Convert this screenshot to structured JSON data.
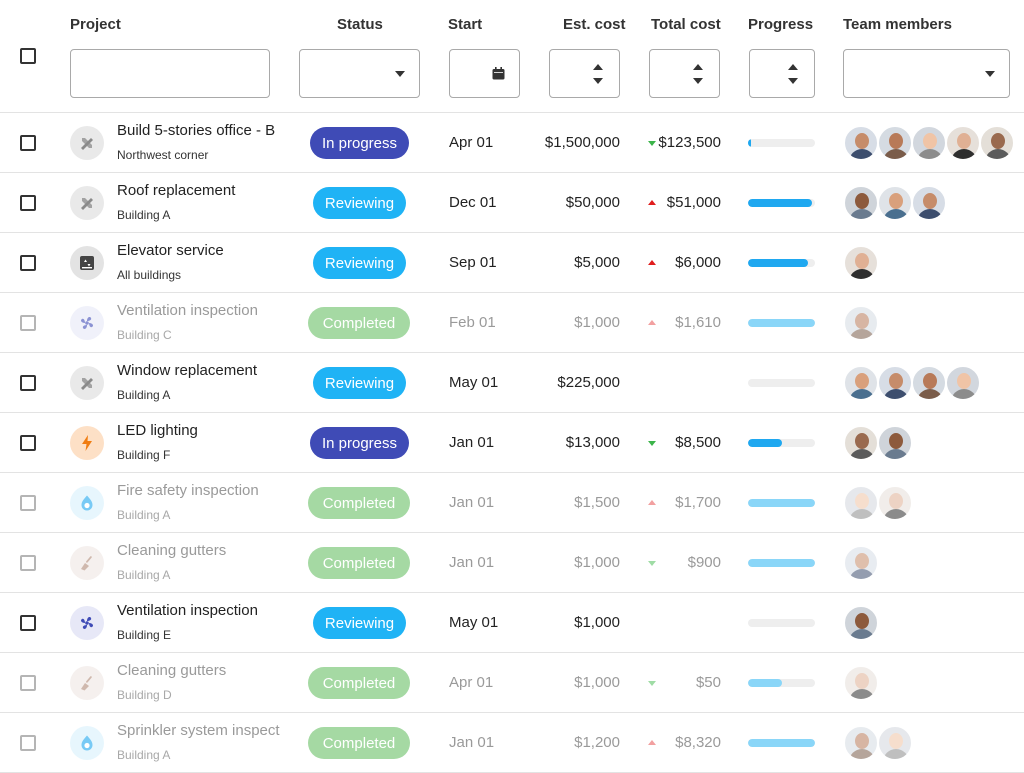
{
  "header": {
    "project": "Project",
    "status": "Status",
    "start": "Start",
    "est_cost": "Est. cost",
    "total_cost": "Total cost",
    "progress": "Progress",
    "team_members": "Team members"
  },
  "colors": {
    "in_progress": "#3f4bb6",
    "reviewing": "#1fb3f5",
    "completed": "#a5d9a3",
    "progress_fill": "#1fa8f0",
    "trend_up": "#e01e1e",
    "trend_down": "#3cb44a"
  },
  "rows": [
    {
      "name": "Build 5-stories office - B",
      "sub": "Northwest corner",
      "icon": "tools-icon",
      "status": "In progress",
      "start": "Apr 01",
      "est": "$1,500,000",
      "trend": "down",
      "total": "$123,500",
      "progress": 0.05,
      "members": 5,
      "muted": false
    },
    {
      "name": "Roof replacement",
      "sub": "Building A",
      "icon": "tools-icon",
      "status": "Reviewing",
      "start": "Dec 01",
      "est": "$50,000",
      "trend": "up",
      "total": "$51,000",
      "progress": 0.95,
      "members": 3,
      "muted": false
    },
    {
      "name": "Elevator service",
      "sub": "All buildings",
      "icon": "elevator-icon",
      "status": "Reviewing",
      "start": "Sep 01",
      "est": "$5,000",
      "trend": "up",
      "total": "$6,000",
      "progress": 0.9,
      "members": 1,
      "muted": false
    },
    {
      "name": "Ventilation inspection",
      "sub": "Building C",
      "icon": "fan-icon",
      "status": "Completed",
      "start": "Feb 01",
      "est": "$1,000",
      "trend": "up",
      "total": "$1,610",
      "progress": 1.0,
      "members": 1,
      "muted": true
    },
    {
      "name": "Window replacement",
      "sub": "Building A",
      "icon": "tools-icon",
      "status": "Reviewing",
      "start": "May 01",
      "est": "$225,000",
      "trend": "",
      "total": "",
      "progress": 0,
      "members": 4,
      "muted": false
    },
    {
      "name": "LED lighting",
      "sub": "Building F",
      "icon": "bolt-icon",
      "status": "In progress",
      "start": "Jan 01",
      "est": "$13,000",
      "trend": "down",
      "total": "$8,500",
      "progress": 0.5,
      "members": 2,
      "muted": false
    },
    {
      "name": "Fire safety inspection",
      "sub": "Building A",
      "icon": "flame-icon",
      "status": "Completed",
      "start": "Jan 01",
      "est": "$1,500",
      "trend": "up",
      "total": "$1,700",
      "progress": 1.0,
      "members": 2,
      "muted": true
    },
    {
      "name": "Cleaning gutters",
      "sub": "Building A",
      "icon": "broom-icon",
      "status": "Completed",
      "start": "Jan 01",
      "est": "$1,000",
      "trend": "down",
      "total": "$900",
      "progress": 1.0,
      "members": 1,
      "muted": true
    },
    {
      "name": "Ventilation inspection",
      "sub": "Building E",
      "icon": "fan-icon",
      "status": "Reviewing",
      "start": "May 01",
      "est": "$1,000",
      "trend": "",
      "total": "",
      "progress": 0,
      "members": 1,
      "muted": false
    },
    {
      "name": "Cleaning gutters",
      "sub": "Building D",
      "icon": "broom-icon",
      "status": "Completed",
      "start": "Apr 01",
      "est": "$1,000",
      "trend": "down",
      "total": "$50",
      "progress": 0.5,
      "members": 1,
      "muted": true
    },
    {
      "name": "Sprinkler system inspect",
      "sub": "Building A",
      "icon": "flame-icon",
      "status": "Completed",
      "start": "Jan 01",
      "est": "$1,200",
      "trend": "up",
      "total": "$8,320",
      "progress": 1.0,
      "members": 2,
      "muted": true
    }
  ]
}
